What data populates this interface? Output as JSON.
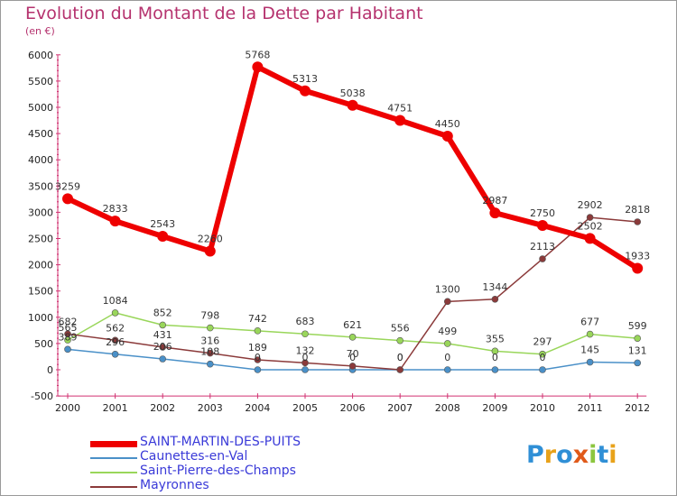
{
  "title": "Evolution du Montant de la Dette par Habitant",
  "subtitle": "(en €)",
  "logo": {
    "text": "Proxiti",
    "colors": [
      "#2f8fd6",
      "#e8a21a",
      "#2f8fd6",
      "#e05a1a",
      "#8cc63f",
      "#2f8fd6",
      "#e8a21a"
    ]
  },
  "chart_data": {
    "type": "line",
    "title": "Evolution du Montant de la Dette par Habitant",
    "subtitle": "(en €)",
    "x": [
      "2000",
      "2001",
      "2002",
      "2003",
      "2004",
      "2005",
      "2006",
      "2007",
      "2008",
      "2009",
      "2010",
      "2011",
      "2012"
    ],
    "ylim": [
      -500,
      6000
    ],
    "yticks": [
      -500,
      0,
      500,
      1000,
      1500,
      2000,
      2500,
      3000,
      3500,
      4000,
      4500,
      5000,
      5500,
      6000
    ],
    "grid": false,
    "legend_position": "bottom-left",
    "series": [
      {
        "name": "SAINT-MARTIN-DES-PUITS",
        "color": "#ee0000",
        "values": [
          3259,
          2833,
          2543,
          2260,
          5768,
          5313,
          5038,
          4751,
          4450,
          2987,
          2750,
          2502,
          1933
        ],
        "labels": [
          "3259",
          "2833",
          "2543",
          "2260",
          "5768",
          "5313",
          "5038",
          "4751",
          "4450",
          "2987",
          "2750",
          "2502",
          "1933"
        ]
      },
      {
        "name": "Caunettes-en-Val",
        "color": "#4a90c8",
        "values": [
          389,
          296,
          206,
          108,
          0,
          0,
          0,
          0,
          0,
          0,
          0,
          145,
          131
        ],
        "labels": [
          "389",
          "296",
          "206",
          "108",
          "0",
          "0",
          "0",
          "0",
          "0",
          "0",
          "0",
          "145",
          "131"
        ]
      },
      {
        "name": "Saint-Pierre-des-Champs",
        "color": "#99d65a",
        "values": [
          565,
          1084,
          852,
          798,
          742,
          683,
          621,
          556,
          499,
          355,
          297,
          677,
          599
        ],
        "labels": [
          "565",
          "1084",
          "852",
          "798",
          "742",
          "683",
          "621",
          "556",
          "499",
          "355",
          "297",
          "677",
          "599"
        ]
      },
      {
        "name": "Mayronnes",
        "color": "#8b3a3a",
        "values": [
          682,
          562,
          431,
          316,
          189,
          132,
          70,
          0,
          1300,
          1344,
          2113,
          2902,
          2818
        ],
        "labels": [
          "682",
          "562",
          "431",
          "316",
          "189",
          "132",
          "70",
          "0",
          "1300",
          "1344",
          "2113",
          "2902",
          "2818"
        ]
      }
    ]
  }
}
